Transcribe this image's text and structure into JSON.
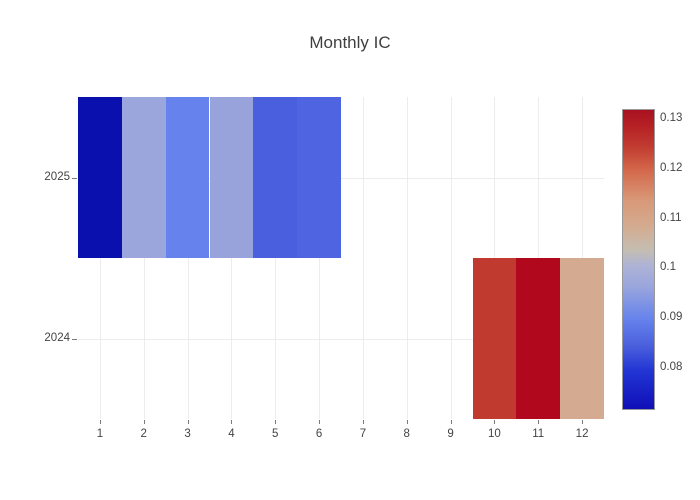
{
  "chart_data": {
    "type": "heatmap",
    "title": "Monthly IC",
    "x_ticks": [
      "1",
      "2",
      "3",
      "4",
      "5",
      "6",
      "7",
      "8",
      "9",
      "10",
      "11",
      "12"
    ],
    "y_ticks": [
      "2025",
      "2024"
    ],
    "grid": true,
    "legend_position": "right-colorbar",
    "series": [
      {
        "year": "2025",
        "cells": [
          {
            "month": 1,
            "value": 0.073,
            "color": "#0a10ad"
          },
          {
            "month": 2,
            "value": 0.097,
            "color": "#9aa6dc"
          },
          {
            "month": 3,
            "value": 0.09,
            "color": "#6682ec"
          },
          {
            "month": 4,
            "value": 0.096,
            "color": "#98a3dc"
          },
          {
            "month": 5,
            "value": 0.085,
            "color": "#4a5fdd"
          },
          {
            "month": 6,
            "value": 0.086,
            "color": "#4e64e0"
          }
        ]
      },
      {
        "year": "2024",
        "cells": [
          {
            "month": 10,
            "value": 0.125,
            "color": "#c03a30"
          },
          {
            "month": 11,
            "value": 0.132,
            "color": "#b1081d"
          },
          {
            "month": 12,
            "value": 0.109,
            "color": "#d4ab90"
          }
        ]
      }
    ],
    "colorbar": {
      "vmin": 0.072,
      "vmax": 0.132,
      "tick_values": [
        0.13,
        0.12,
        0.11,
        0.1,
        0.09,
        0.08
      ],
      "tick_labels": [
        "0.13",
        "0.12",
        "0.11",
        "0.1",
        "0.09",
        "0.08"
      ],
      "colormap_stops": [
        {
          "pos": 0,
          "color": "#0f0fb8"
        },
        {
          "pos": 0.13,
          "color": "#2336d4"
        },
        {
          "pos": 0.21,
          "color": "#4a5fdd"
        },
        {
          "pos": 0.3,
          "color": "#6682ec"
        },
        {
          "pos": 0.41,
          "color": "#9aa6dc"
        },
        {
          "pos": 0.48,
          "color": "#aeb3d6"
        },
        {
          "pos": 0.53,
          "color": "#c4beb2"
        },
        {
          "pos": 0.61,
          "color": "#d4ab90"
        },
        {
          "pos": 0.7,
          "color": "#d89877"
        },
        {
          "pos": 0.8,
          "color": "#d3674a"
        },
        {
          "pos": 0.88,
          "color": "#c03a30"
        },
        {
          "pos": 0.95,
          "color": "#b51f24"
        },
        {
          "pos": 1,
          "color": "#a81020"
        }
      ]
    }
  }
}
